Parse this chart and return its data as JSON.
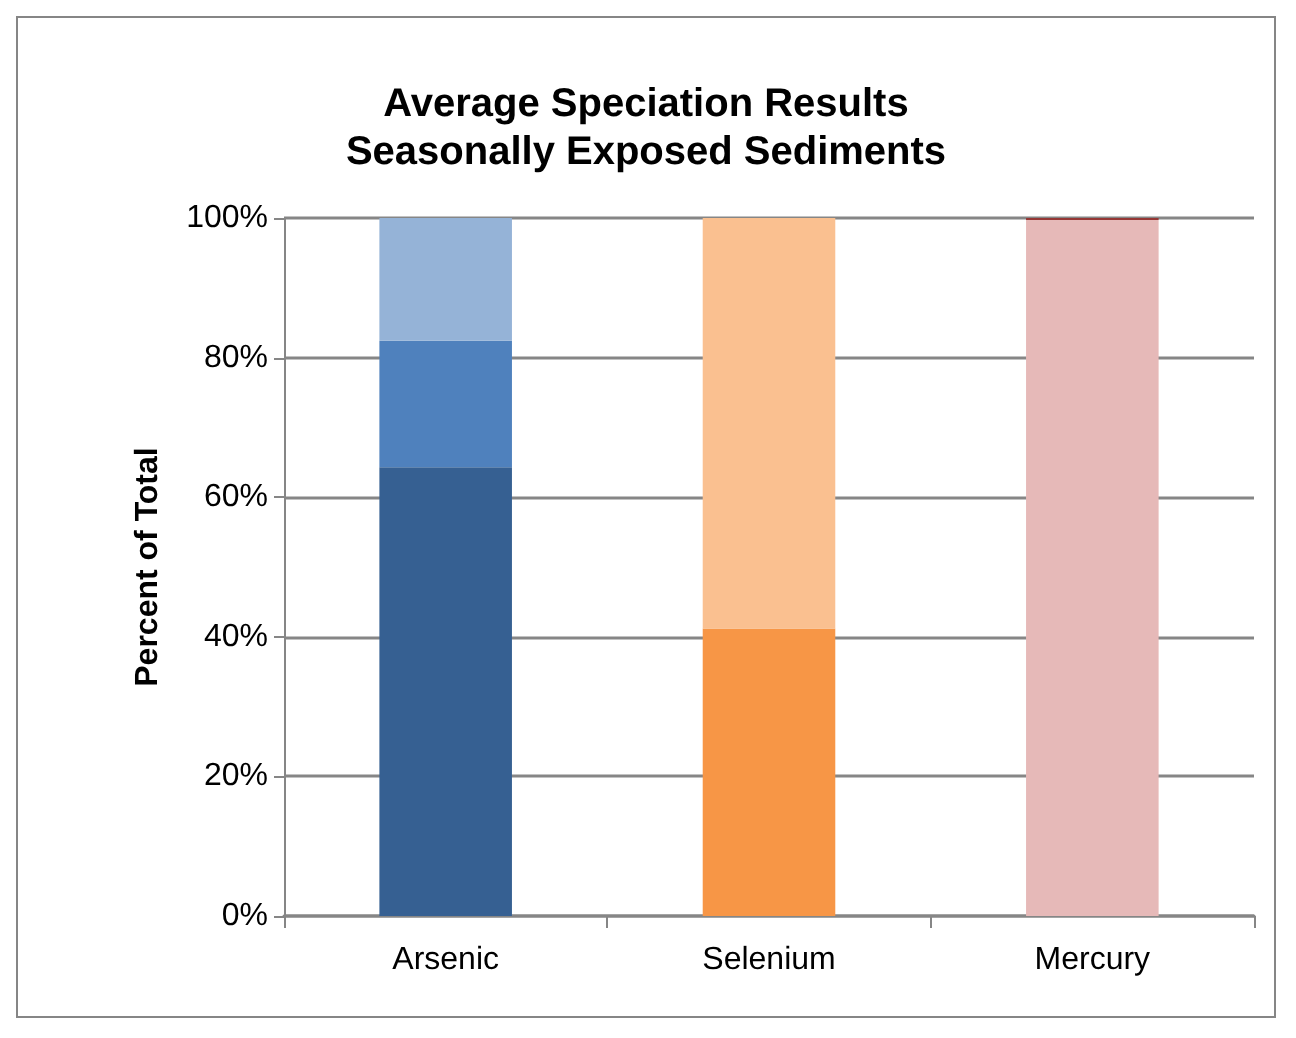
{
  "chart_data": {
    "type": "bar",
    "title": "Average Speciation Results\nSeasonally Exposed Sediments",
    "ylabel": "Percent of Total",
    "categories": [
      "Arsenic",
      "Selenium",
      "Mercury"
    ],
    "stacked": true,
    "series": [
      {
        "colors": [
          "#366092",
          "#f79646",
          "#e6b9b8"
        ],
        "values": [
          64.3,
          41.2,
          99.7
        ]
      },
      {
        "colors": [
          "#4f81bd",
          "#fac090",
          "#953735"
        ],
        "values": [
          18.1,
          58.8,
          0.3
        ]
      },
      {
        "colors": [
          "#95b3d7",
          null,
          null
        ],
        "values": [
          17.6,
          null,
          null
        ]
      }
    ],
    "ylim": [
      0,
      100
    ],
    "yticks": [
      {
        "value": 0,
        "label": "0%"
      },
      {
        "value": 20,
        "label": "20%"
      },
      {
        "value": 40,
        "label": "40%"
      },
      {
        "value": 60,
        "label": "60%"
      },
      {
        "value": 80,
        "label": "80%"
      },
      {
        "value": 100,
        "label": "100%"
      }
    ],
    "grid": "y"
  }
}
